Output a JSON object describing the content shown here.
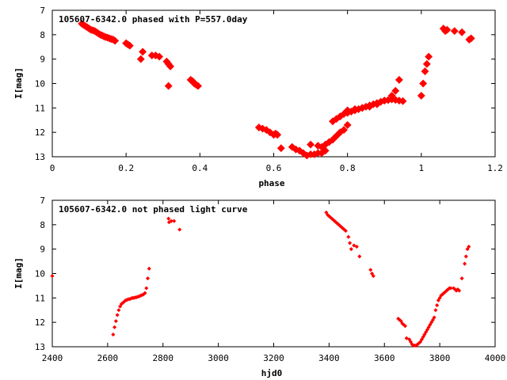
{
  "colors": {
    "points": "#ff0000",
    "axes": "#000000",
    "background": "#ffffff"
  },
  "chart_data": [
    {
      "type": "scatter",
      "title": "105607-6342.0 phased with P=557.0day",
      "xlabel": "phase",
      "ylabel": "I[mag]",
      "xlim": [
        0,
        1.2
      ],
      "ylim": [
        7,
        13
      ],
      "y_inverted": true,
      "grid": false,
      "xticks": [
        "0",
        "0.2",
        "0.4",
        "0.6",
        "0.8",
        "1",
        "1.2"
      ],
      "yticks": [
        "7",
        "8",
        "9",
        "10",
        "11",
        "12",
        "13"
      ],
      "series": [
        {
          "x": [
            0.08,
            0.085,
            0.09,
            0.095,
            0.1,
            0.105,
            0.11,
            0.115,
            0.12,
            0.125,
            0.13,
            0.135,
            0.14,
            0.145,
            0.15,
            0.155,
            0.16,
            0.165,
            0.17,
            0.2,
            0.205,
            0.21,
            0.24,
            0.245,
            0.27,
            0.28,
            0.29,
            0.31,
            0.315,
            0.32,
            0.315,
            0.375,
            0.38,
            0.385,
            0.39,
            0.395,
            0.56,
            0.57,
            0.58,
            0.59,
            0.6,
            0.605,
            0.61,
            0.62,
            0.65,
            0.66,
            0.67,
            0.68,
            0.69,
            0.7,
            0.71,
            0.72,
            0.73,
            0.74,
            0.7,
            0.72,
            0.73,
            0.74,
            0.75,
            0.76,
            0.77,
            0.78,
            0.79,
            0.8,
            0.76,
            0.77,
            0.78,
            0.79,
            0.8,
            0.81,
            0.82,
            0.83,
            0.84,
            0.85,
            0.86,
            0.87,
            0.88,
            0.89,
            0.9,
            0.91,
            0.92,
            0.93,
            0.94,
            0.95,
            0.8,
            0.82,
            0.84,
            0.86,
            0.88,
            0.9,
            0.92,
            0.93,
            0.94,
            1.0,
            1.005,
            1.01,
            1.015,
            1.02,
            1.06,
            1.065,
            1.07,
            1.09,
            1.11,
            1.13,
            1.135
          ],
          "y": [
            7.55,
            7.6,
            7.65,
            7.7,
            7.75,
            7.8,
            7.82,
            7.85,
            7.9,
            7.95,
            8.0,
            8.03,
            8.07,
            8.1,
            8.12,
            8.15,
            8.18,
            8.2,
            8.25,
            8.35,
            8.4,
            8.45,
            9.0,
            8.7,
            8.85,
            8.85,
            8.9,
            9.1,
            9.2,
            9.3,
            10.1,
            9.85,
            9.9,
            10.0,
            10.05,
            10.1,
            11.8,
            11.85,
            11.9,
            12.0,
            12.1,
            12.05,
            12.1,
            12.65,
            12.6,
            12.7,
            12.75,
            12.85,
            12.95,
            12.9,
            12.9,
            12.85,
            12.85,
            12.75,
            12.5,
            12.55,
            12.6,
            12.5,
            12.4,
            12.3,
            12.15,
            12.0,
            11.9,
            11.7,
            11.55,
            11.45,
            11.35,
            11.25,
            11.2,
            11.15,
            11.1,
            11.05,
            11.0,
            10.95,
            10.9,
            10.85,
            10.8,
            10.75,
            10.7,
            10.68,
            10.65,
            10.67,
            10.7,
            10.72,
            11.1,
            11.05,
            11.0,
            10.95,
            10.85,
            10.7,
            10.5,
            10.3,
            9.85,
            10.5,
            10.0,
            9.5,
            9.2,
            8.9,
            7.75,
            7.85,
            7.8,
            7.85,
            7.9,
            8.2,
            8.15
          ]
        }
      ]
    },
    {
      "type": "scatter",
      "title": "105607-6342.0 not phased light curve",
      "xlabel": "hjd0",
      "ylabel": "I[mag]",
      "xlim": [
        2400,
        4000
      ],
      "ylim": [
        7,
        13
      ],
      "y_inverted": true,
      "grid": false,
      "xticks": [
        "2400",
        "2600",
        "2800",
        "3000",
        "3200",
        "3400",
        "3600",
        "3800",
        "4000"
      ],
      "yticks": [
        "7",
        "8",
        "9",
        "10",
        "11",
        "12",
        "13"
      ],
      "series": [
        {
          "x": [
            2400,
            2620,
            2625,
            2630,
            2635,
            2640,
            2645,
            2650,
            2655,
            2660,
            2665,
            2670,
            2675,
            2680,
            2685,
            2690,
            2695,
            2700,
            2705,
            2710,
            2715,
            2720,
            2725,
            2730,
            2735,
            2740,
            2745,
            2750,
            2820,
            2822,
            2830,
            2840,
            2860,
            3390,
            3395,
            3400,
            3405,
            3410,
            3415,
            3420,
            3425,
            3430,
            3435,
            3440,
            3445,
            3450,
            3455,
            3460,
            3470,
            3475,
            3480,
            3490,
            3500,
            3510,
            3550,
            3555,
            3560,
            3650,
            3655,
            3660,
            3665,
            3670,
            3675,
            3680,
            3690,
            3695,
            3700,
            3705,
            3710,
            3715,
            3720,
            3725,
            3730,
            3735,
            3740,
            3745,
            3750,
            3755,
            3760,
            3765,
            3770,
            3775,
            3780,
            3785,
            3790,
            3795,
            3800,
            3805,
            3810,
            3815,
            3820,
            3825,
            3830,
            3835,
            3840,
            3850,
            3855,
            3860,
            3865,
            3870,
            3880,
            3890,
            3895,
            3900,
            3905
          ],
          "y": [
            10.1,
            12.5,
            12.2,
            11.95,
            11.7,
            11.5,
            11.35,
            11.25,
            11.2,
            11.15,
            11.1,
            11.08,
            11.05,
            11.05,
            11.02,
            11.0,
            11.0,
            10.98,
            10.97,
            10.95,
            10.93,
            10.9,
            10.88,
            10.85,
            10.8,
            10.6,
            10.2,
            9.8,
            7.75,
            7.9,
            7.85,
            7.85,
            8.2,
            7.5,
            7.6,
            7.65,
            7.7,
            7.75,
            7.8,
            7.85,
            7.9,
            7.95,
            8.0,
            8.05,
            8.1,
            8.15,
            8.2,
            8.25,
            8.5,
            8.75,
            9.0,
            8.85,
            8.9,
            9.3,
            9.85,
            10.0,
            10.1,
            11.85,
            11.9,
            11.95,
            12.05,
            12.1,
            12.15,
            12.65,
            12.7,
            12.8,
            12.9,
            12.95,
            12.95,
            12.95,
            12.9,
            12.85,
            12.8,
            12.7,
            12.6,
            12.5,
            12.4,
            12.3,
            12.2,
            12.1,
            12.0,
            11.9,
            11.8,
            11.5,
            11.3,
            11.1,
            11.0,
            10.9,
            10.85,
            10.8,
            10.75,
            10.7,
            10.65,
            10.6,
            10.6,
            10.6,
            10.65,
            10.7,
            10.65,
            10.7,
            10.2,
            9.6,
            9.3,
            9.0,
            8.9
          ]
        }
      ]
    }
  ]
}
